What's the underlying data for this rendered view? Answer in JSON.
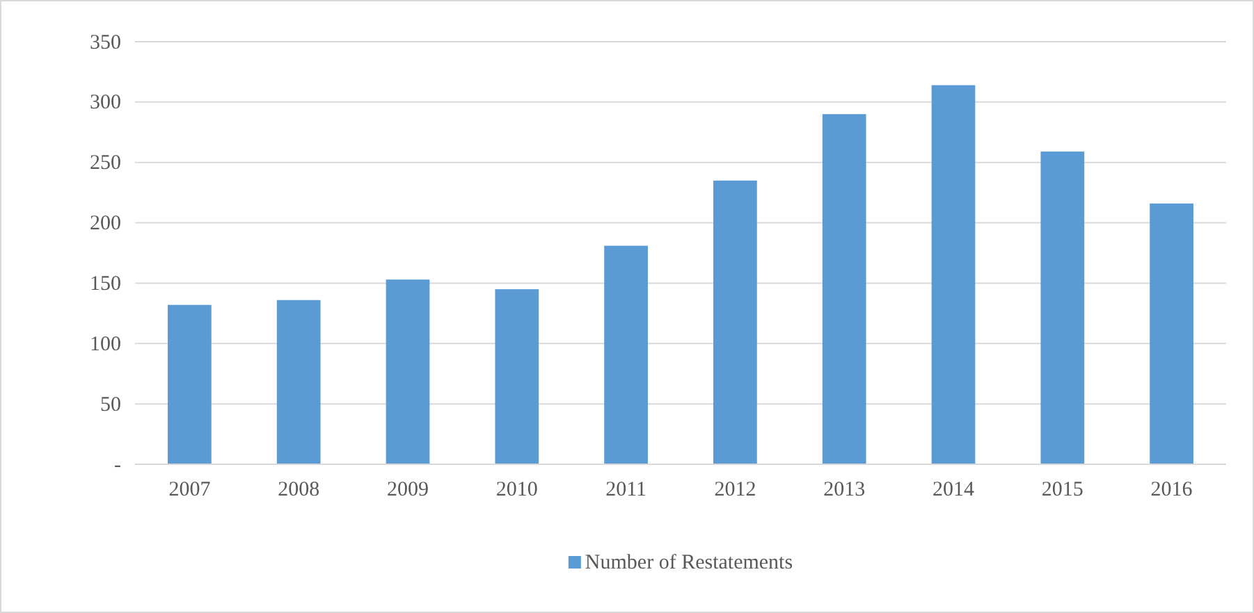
{
  "chart_data": {
    "type": "bar",
    "categories": [
      "2007",
      "2008",
      "2009",
      "2010",
      "2011",
      "2012",
      "2013",
      "2014",
      "2015",
      "2016"
    ],
    "series": [
      {
        "name": "Number of Restatements",
        "color": "#5b9bd5",
        "values": [
          132,
          136,
          153,
          145,
          181,
          235,
          290,
          314,
          259,
          216
        ]
      }
    ],
    "ylim": [
      0,
      350
    ],
    "yticks": [
      {
        "value": 0,
        "label": "-"
      },
      50,
      100,
      150,
      200,
      250,
      300,
      350
    ],
    "grid": "y",
    "legend": "bottom"
  }
}
